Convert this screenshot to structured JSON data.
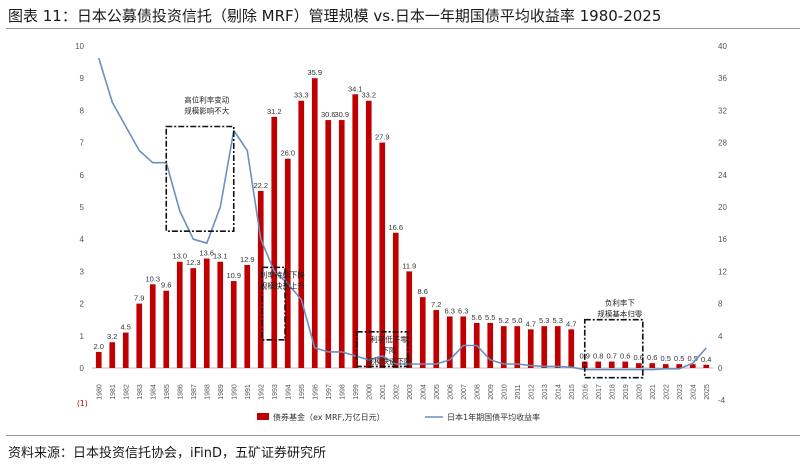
{
  "figure": {
    "title": "图表 11：日本公募债投资信托（剔除 MRF）管理规模 vs.日本一年期国债平均收益率 1980-2025",
    "source": "资料来源：日本投资信托协会，iFinD，五矿证券研究所",
    "footnote": "(1)"
  },
  "colors": {
    "bar": "#c00000",
    "line": "#6a8fc0"
  },
  "chart_data": {
    "type": "bar",
    "categories": [
      "1980",
      "1981",
      "1982",
      "1983",
      "1984",
      "1985",
      "1986",
      "1987",
      "1988",
      "1989",
      "1990",
      "1991",
      "1992",
      "1993",
      "1994",
      "1995",
      "1996",
      "1997",
      "1998",
      "1999",
      "2000",
      "2001",
      "2002",
      "2003",
      "2004",
      "2005",
      "2006",
      "2007",
      "2008",
      "2009",
      "2010",
      "2011",
      "2012",
      "2013",
      "2014",
      "2015",
      "2016",
      "2017",
      "2018",
      "2019",
      "2020",
      "2021",
      "2022",
      "2023",
      "2024",
      "2025"
    ],
    "series": [
      {
        "name": "债券基金（ex MRF,万亿日元）",
        "type": "bar",
        "axis": "left",
        "values": [
          0.5,
          0.8,
          1.1,
          2.0,
          2.6,
          2.4,
          3.3,
          3.1,
          3.4,
          3.3,
          2.7,
          3.2,
          5.5,
          7.8,
          6.5,
          8.3,
          9.0,
          7.7,
          7.7,
          8.5,
          8.3,
          7.0,
          4.2,
          3.0,
          2.2,
          1.8,
          1.6,
          1.6,
          1.4,
          1.4,
          1.3,
          1.3,
          1.2,
          1.3,
          1.3,
          1.2,
          0.2,
          0.2,
          0.2,
          0.2,
          0.15,
          0.15,
          0.12,
          0.12,
          0.12,
          0.1
        ],
        "labels": [
          "2.0",
          "3.2",
          "4.5",
          "7.9",
          "10.3",
          "9.6",
          "13.0",
          "12.3",
          "13.6",
          "13.1",
          "10.9",
          "12.9",
          "22.2",
          "31.2",
          "26.0",
          "33.3",
          "35.9",
          "30.6",
          "30.9",
          "34.1",
          "33.2",
          "27.9",
          "16.6",
          "11.9",
          "8.6",
          "7.2",
          "6.3",
          "6.3",
          "5.6",
          "5.5",
          "5.2",
          "5.0",
          "4.7",
          "5.3",
          "5.3",
          "4.7",
          "0.9",
          "0.8",
          "0.7",
          "0.6",
          "0.6",
          "0.6",
          "0.5",
          "0.5",
          "0.5",
          "0.4"
        ]
      },
      {
        "name": "日本1年期国债平均收益率",
        "type": "line",
        "axis": "right",
        "values": [
          38.5,
          33,
          30,
          27,
          25.5,
          25.5,
          19.5,
          16,
          15.5,
          20,
          29.5,
          27,
          16,
          12,
          10.5,
          8.5,
          2.5,
          2,
          2,
          1.5,
          1,
          1.5,
          0.5,
          0.5,
          0.5,
          0.5,
          1,
          2.8,
          2.8,
          1,
          0.5,
          0.5,
          0.3,
          0.2,
          0.2,
          0.1,
          -0.2,
          -0.2,
          -0.2,
          -0.2,
          -0.2,
          -0.2,
          -0.1,
          -0.1,
          0.6,
          2.5
        ]
      }
    ],
    "ylim": [
      0,
      10
    ],
    "y2lim": [
      -4,
      40
    ],
    "yticks": [
      "0",
      "1",
      "2",
      "3",
      "4",
      "5",
      "6",
      "7",
      "8",
      "9",
      "10"
    ],
    "y2ticks": [
      "-4",
      "0",
      "4",
      "8",
      "12",
      "16",
      "20",
      "24",
      "28",
      "32",
      "36",
      "40"
    ],
    "legend_position": "bottom",
    "annotations": [
      "高位利率变动 规模影响不大",
      "利率持续下降 规模快速上升",
      "利率低于零 下降 规模快速下降",
      "负利率下 规模基本归零"
    ]
  }
}
